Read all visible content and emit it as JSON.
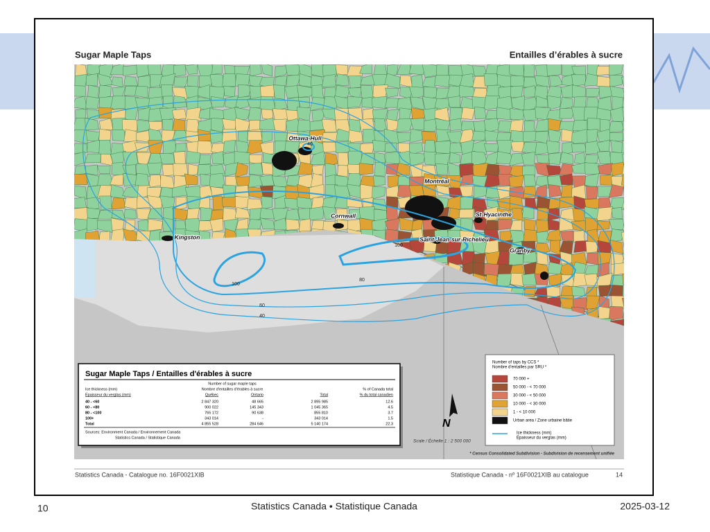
{
  "header": {
    "title_en": "Sugar Maple Taps",
    "title_fr": "Entailles d’érables à sucre"
  },
  "map": {
    "places": [
      "Ottawa-Hull",
      "Montréal",
      "Cornwall",
      "St-Hyacinthe",
      "Kingston",
      "Saint-Jean-sur-Richelieu",
      "Granby"
    ],
    "contour_labels": [
      "40",
      "100",
      "100",
      "80",
      "60",
      "40"
    ]
  },
  "table": {
    "title": "Sugar Maple Taps / Entailles d'érables à sucre",
    "group_header_en": "Number of sugar maple taps",
    "header_en": [
      "Ice thickness (mm)",
      "Nombre d'entailles d'érables à sucre",
      "% of Canada total"
    ],
    "header_fr": [
      "Épaisseur du verglas (mm)",
      "Québec",
      "Ontario",
      "Total",
      "% du total canadien"
    ],
    "rows": [
      [
        "40 - <60",
        "2 847 320",
        "48 665",
        "2 895 985",
        "12.6"
      ],
      [
        "60 - <80",
        "900 022",
        "145 343",
        "1 045 365",
        "4.5"
      ],
      [
        "80 - <100",
        "765 172",
        "90 638",
        "855 810",
        "3.7"
      ],
      [
        "100+",
        "343 014",
        "-",
        "343 014",
        "1.5"
      ],
      [
        "Total",
        "4 855 528",
        "284 646",
        "5 140 174",
        "22.3"
      ]
    ],
    "sources": [
      "Sources: Environment Canada / Environnement Canada",
      "Statistics Canada / Statistique Canada"
    ]
  },
  "legend": {
    "title_en": "Number of taps by CCS *",
    "title_fr": "Nombre d'entailles par SRU *",
    "items": [
      {
        "label": "70 000 +",
        "color": "#b4463b"
      },
      {
        "label": "50 000 - < 70 000",
        "color": "#9a5433"
      },
      {
        "label": "30 000 - < 50 000",
        "color": "#d9785f"
      },
      {
        "label": "10 000 - < 30 000",
        "color": "#e0a233"
      },
      {
        "label": "1 - < 10 000",
        "color": "#f3d48c"
      },
      {
        "label": "Urban area / Zone urbaine bâtie",
        "color": "#111111"
      }
    ],
    "ice_en": "Ice thickness (mm)",
    "ice_fr": "Épaisseur du verglas (mm)"
  },
  "scale": "Scale / Échelle 1 : 2 500 000",
  "north": "N",
  "footnote": "* Census Consolidated Subdivision - Subdivision de recensement unifiée",
  "page_footer": {
    "left": "Statistics Canada - Catalogue no. 16F0021XIB",
    "right": "Statistique Canada - nº 16F0021XIB au catalogue",
    "page": "14"
  },
  "slide_footer": {
    "number": "10",
    "center": "Statistics Canada • Statistique Canada",
    "date": "2025-03-12"
  }
}
